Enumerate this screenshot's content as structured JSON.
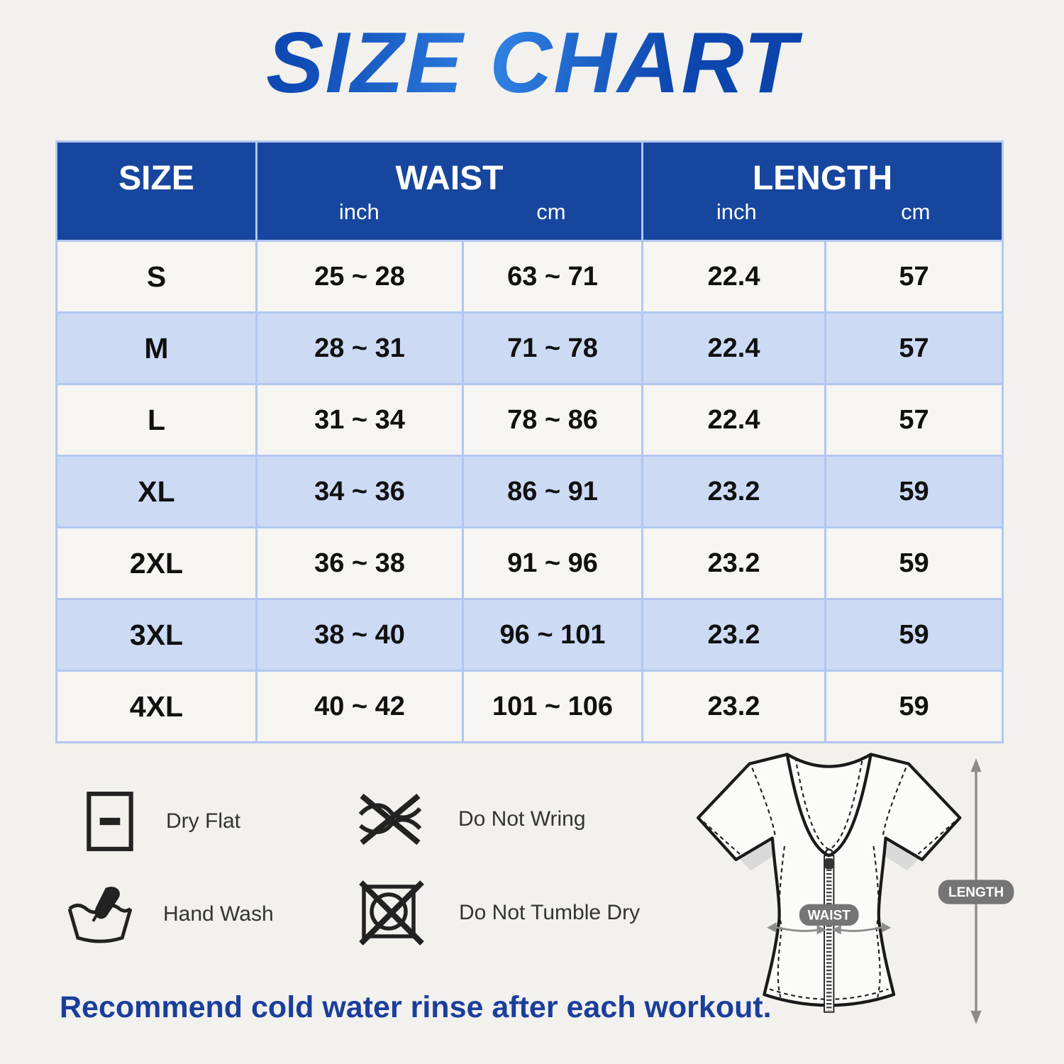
{
  "title": "SIZE CHART",
  "table": {
    "header": {
      "size": "SIZE",
      "waist": "WAIST",
      "length": "LENGTH",
      "unit_inch": "inch",
      "unit_cm": "cm"
    },
    "rows": [
      {
        "size": "S",
        "waist_inch": "25 ~ 28",
        "waist_cm": "63 ~ 71",
        "length_inch": "22.4",
        "length_cm": "57"
      },
      {
        "size": "M",
        "waist_inch": "28 ~ 31",
        "waist_cm": "71 ~ 78",
        "length_inch": "22.4",
        "length_cm": "57"
      },
      {
        "size": "L",
        "waist_inch": "31 ~ 34",
        "waist_cm": "78 ~ 86",
        "length_inch": "22.4",
        "length_cm": "57"
      },
      {
        "size": "XL",
        "waist_inch": "34 ~ 36",
        "waist_cm": "86 ~ 91",
        "length_inch": "23.2",
        "length_cm": "59"
      },
      {
        "size": "2XL",
        "waist_inch": "36 ~ 38",
        "waist_cm": "91 ~ 96",
        "length_inch": "23.2",
        "length_cm": "59"
      },
      {
        "size": "3XL",
        "waist_inch": "38 ~ 40",
        "waist_cm": "96 ~ 101",
        "length_inch": "23.2",
        "length_cm": "59"
      },
      {
        "size": "4XL",
        "waist_inch": "40 ~ 42",
        "waist_cm": "101 ~ 106",
        "length_inch": "23.2",
        "length_cm": "59"
      }
    ]
  },
  "care_items": [
    {
      "icon": "dry-flat-icon",
      "label": "Dry Flat"
    },
    {
      "icon": "do-not-wring-icon",
      "label": "Do Not Wring"
    },
    {
      "icon": "hand-wash-icon",
      "label": "Hand Wash"
    },
    {
      "icon": "do-not-tumble-dry-icon",
      "label": "Do Not Tumble Dry"
    }
  ],
  "diagram": {
    "waist_badge": "WAIST",
    "length_badge": "LENGTH"
  },
  "footnote": "Recommend cold water rinse after each workout.",
  "colors": {
    "header_blue": "#17469e",
    "row_blue": "#ccdaf4",
    "row_light": "#f6f5f2",
    "table_border": "#b2c7ef",
    "title_blue": "#0f4ab4",
    "footnote_blue": "#1b3e9b",
    "badge_gray": "#757575",
    "arrow_gray": "#8c8c8c"
  }
}
